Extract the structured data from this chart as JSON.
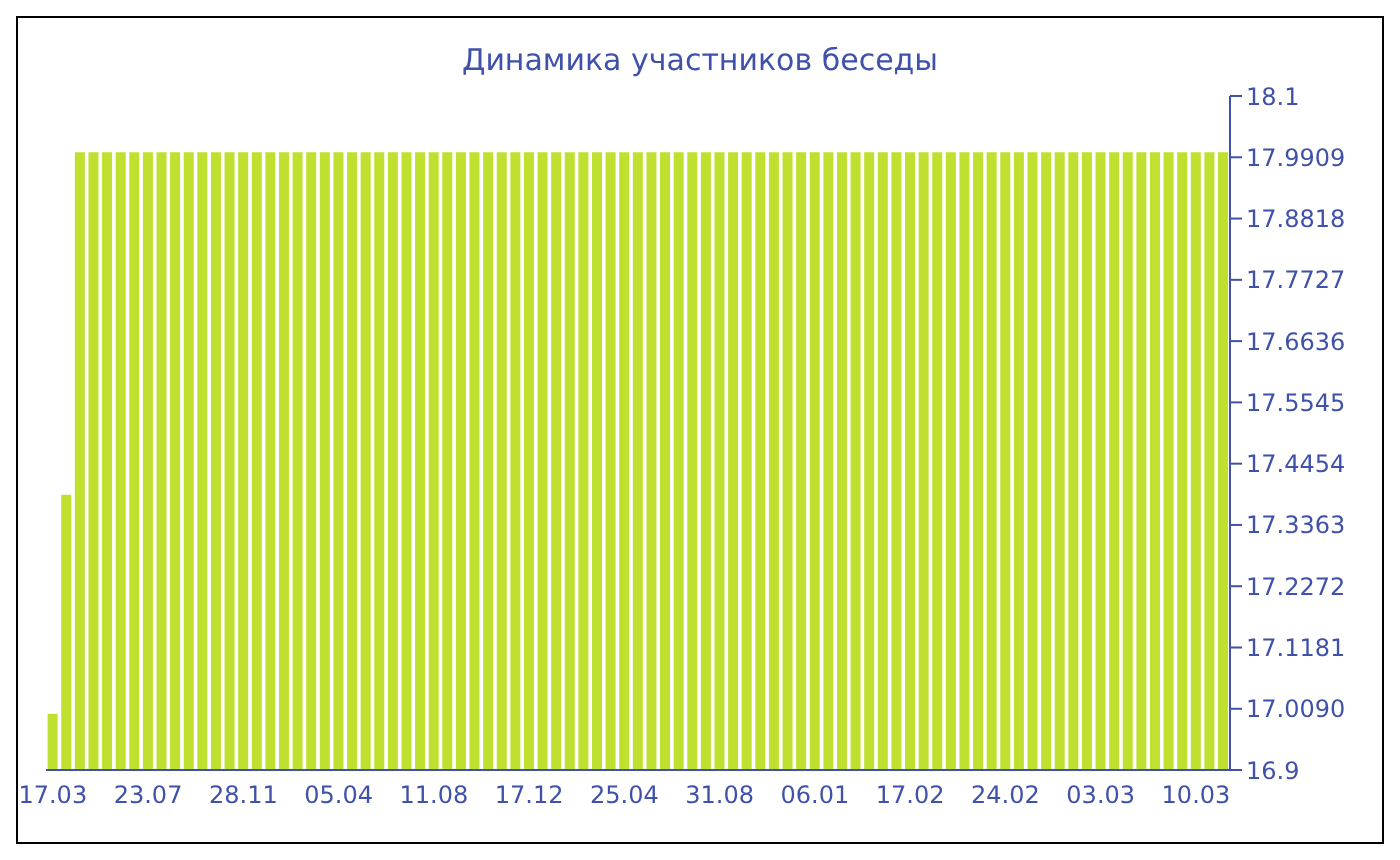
{
  "chart_data": {
    "type": "bar",
    "title": "Динамика участников беседы",
    "categories": [
      "17.03",
      null,
      null,
      null,
      null,
      null,
      null,
      "23.07",
      null,
      null,
      null,
      null,
      null,
      null,
      "28.11",
      null,
      null,
      null,
      null,
      null,
      null,
      "05.04",
      null,
      null,
      null,
      null,
      null,
      null,
      "11.08",
      null,
      null,
      null,
      null,
      null,
      null,
      "17.12",
      null,
      null,
      null,
      null,
      null,
      null,
      "25.04",
      null,
      null,
      null,
      null,
      null,
      null,
      "31.08",
      null,
      null,
      null,
      null,
      null,
      null,
      "06.01",
      null,
      null,
      null,
      null,
      null,
      null,
      "17.02",
      null,
      null,
      null,
      null,
      null,
      null,
      "24.02",
      null,
      null,
      null,
      null,
      null,
      null,
      "03.03",
      null,
      null,
      null,
      null,
      null,
      null,
      "10.03",
      null,
      null
    ],
    "values": [
      17,
      17.39,
      18,
      18,
      18,
      18,
      18,
      18,
      18,
      18,
      18,
      18,
      18,
      18,
      18,
      18,
      18,
      18,
      18,
      18,
      18,
      18,
      18,
      18,
      18,
      18,
      18,
      18,
      18,
      18,
      18,
      18,
      18,
      18,
      18,
      18,
      18,
      18,
      18,
      18,
      18,
      18,
      18,
      18,
      18,
      18,
      18,
      18,
      18,
      18,
      18,
      18,
      18,
      18,
      18,
      18,
      18,
      18,
      18,
      18,
      18,
      18,
      18,
      18,
      18,
      18,
      18,
      18,
      18,
      18,
      18,
      18,
      18,
      18,
      18,
      18,
      18,
      18,
      18,
      18,
      18,
      18,
      18,
      18,
      18,
      18,
      18
    ],
    "color": "#bfe02f",
    "ylim": [
      16.9,
      18.1
    ],
    "yticks": [
      16.9,
      {
        "value": 17.009,
        "label": "17.0090"
      },
      17.1181,
      17.2272,
      17.3363,
      17.4454,
      17.5545,
      17.6636,
      17.7727,
      17.8818,
      17.9909,
      18.1
    ]
  }
}
